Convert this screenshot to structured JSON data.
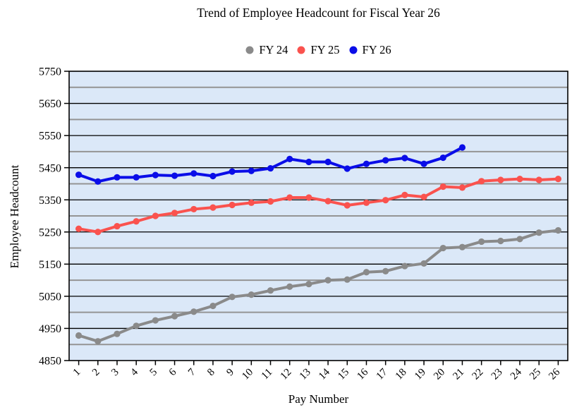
{
  "chart": {
    "title": "Trend of Employee Headcount for Fiscal Year 26",
    "xlabel": "Pay Number",
    "ylabel": "Employee Headcount"
  },
  "chart_data": {
    "type": "line",
    "title": "Trend of Employee Headcount for Fiscal Year 26",
    "xlabel": "Pay Number",
    "ylabel": "Employee Headcount",
    "legend_position": "top-center",
    "grid": "major-black-minor-gray",
    "plot_bg": "#dbe8f8",
    "minor_grid_color": "#949494",
    "major_grid_color": "#000000",
    "ylim": [
      4850,
      5750
    ],
    "ytick_step": 100,
    "yticks": [
      4850,
      4950,
      5050,
      5150,
      5250,
      5350,
      5450,
      5550,
      5650,
      5750
    ],
    "x": [
      1,
      2,
      3,
      4,
      5,
      6,
      7,
      8,
      9,
      10,
      11,
      12,
      13,
      14,
      15,
      16,
      17,
      18,
      19,
      20,
      21,
      22,
      23,
      24,
      25,
      26
    ],
    "xticklabels": [
      "1",
      "2",
      "3",
      "4",
      "5",
      "6",
      "7",
      "8",
      "9",
      "10",
      "11",
      "12",
      "13",
      "14",
      "15",
      "16",
      "17",
      "18",
      "19",
      "20",
      "21",
      "22",
      "23",
      "24",
      "25",
      "26"
    ],
    "series": [
      {
        "name": "FY 24",
        "color": "#8a8a8a",
        "values": [
          4928,
          4910,
          4933,
          4958,
          4975,
          4988,
          5002,
          5020,
          5048,
          5055,
          5068,
          5080,
          5088,
          5100,
          5102,
          5125,
          5128,
          5144,
          5152,
          5200,
          5203,
          5220,
          5222,
          5228,
          5248,
          5255
        ]
      },
      {
        "name": "FY 25",
        "color": "#fa524e",
        "values": [
          5260,
          5250,
          5268,
          5283,
          5300,
          5309,
          5321,
          5326,
          5334,
          5341,
          5345,
          5357,
          5357,
          5346,
          5333,
          5341,
          5349,
          5365,
          5359,
          5391,
          5388,
          5408,
          5412,
          5415,
          5412,
          5415
        ]
      },
      {
        "name": "FY 26",
        "color": "#0a0de8",
        "values": [
          5428,
          5407,
          5420,
          5420,
          5427,
          5425,
          5432,
          5424,
          5438,
          5440,
          5448,
          5477,
          5468,
          5468,
          5447,
          5462,
          5473,
          5480,
          5462,
          5481,
          5513
        ]
      }
    ]
  }
}
